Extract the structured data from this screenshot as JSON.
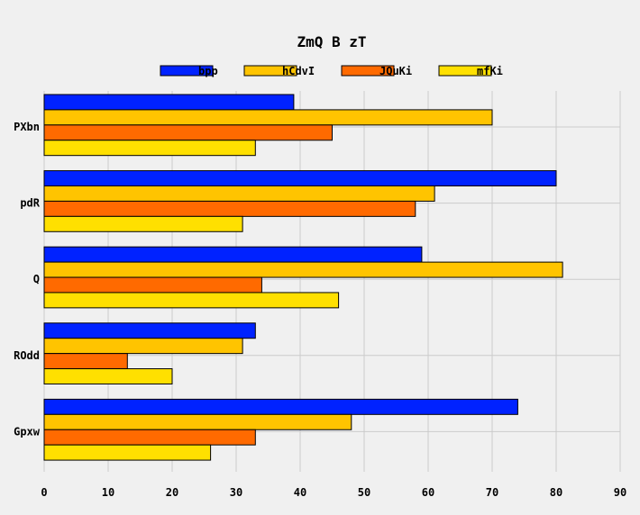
{
  "chart_data": {
    "type": "bar",
    "orientation": "horizontal",
    "title": "ZmQ B zT",
    "xlabel": "",
    "ylabel": "",
    "xlim": [
      0,
      90
    ],
    "x_ticks": [
      0,
      10,
      20,
      30,
      40,
      50,
      60,
      70,
      80,
      90
    ],
    "grid": true,
    "legend_position": "top",
    "categories": [
      "PXbn",
      "pdR",
      "Q",
      "ROdd",
      "Gpxw"
    ],
    "series": [
      {
        "name": "bpp",
        "color": "#0022ff",
        "values": [
          39,
          80,
          59,
          33,
          74
        ]
      },
      {
        "name": "hCdvI",
        "color": "#ffc400",
        "values": [
          70,
          61,
          81,
          31,
          48
        ]
      },
      {
        "name": "JQuKi",
        "color": "#ff6a00",
        "values": [
          45,
          58,
          34,
          13,
          33
        ]
      },
      {
        "name": "mfKi",
        "color": "#ffe000",
        "values": [
          33,
          31,
          46,
          20,
          26
        ]
      }
    ]
  }
}
